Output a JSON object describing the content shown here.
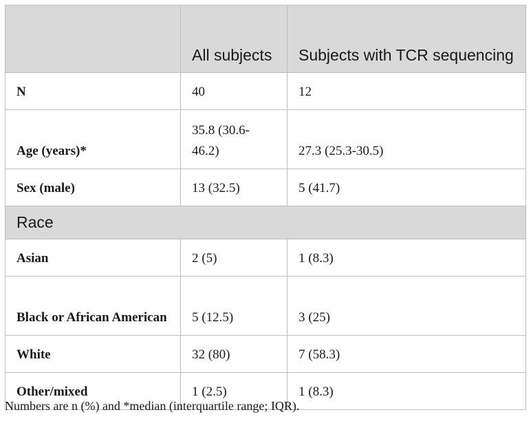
{
  "table": {
    "headers": [
      "",
      "All subjects",
      "Subjects with TCR sequencing"
    ],
    "rows": [
      {
        "label": "N",
        "all": "40",
        "tcr": "12"
      },
      {
        "label": "Age (years)*",
        "all": "35.8 (30.6-46.2)",
        "tcr": "27.3 (25.3-30.5)"
      },
      {
        "label": "Sex (male)",
        "all": "13 (32.5)",
        "tcr": "5 (41.7)"
      }
    ],
    "section": "Race",
    "race_rows": [
      {
        "label": "Asian",
        "all": "2 (5)",
        "tcr": "1 (8.3)"
      },
      {
        "label": "Black or African American",
        "all": "5 (12.5)",
        "tcr": "3 (25)"
      },
      {
        "label": "White",
        "all": "32 (80)",
        "tcr": "7 (58.3)"
      },
      {
        "label": "Other/mixed",
        "all": "1 (2.5)",
        "tcr": "1 (8.3)"
      }
    ]
  },
  "footnote": "Numbers are n (%) and *median (interquartile range; IQR).",
  "colors": {
    "header_background": "#d9d9d9",
    "border": "#bdbdbd",
    "text": "#1a1a1a"
  }
}
